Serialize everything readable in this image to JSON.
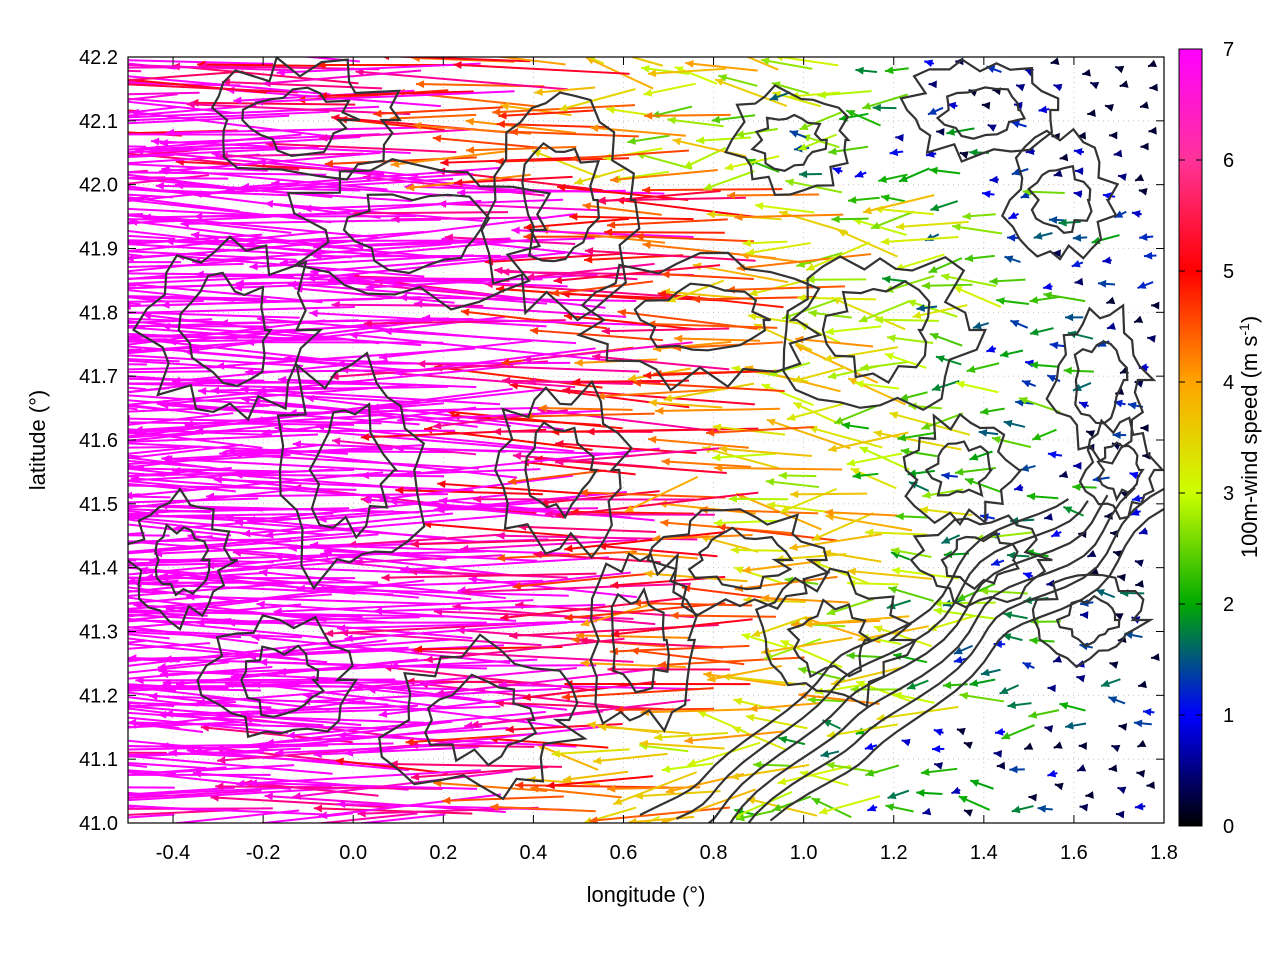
{
  "chart_data": {
    "type": "vector-field",
    "xlabel": "longitude (°)",
    "ylabel": "latitude (°)",
    "xlim": [
      -0.5,
      1.8
    ],
    "ylim": [
      41.0,
      42.2
    ],
    "x_ticks": [
      -0.4,
      -0.2,
      0.0,
      0.2,
      0.4,
      0.6,
      0.8,
      1.0,
      1.2,
      1.4,
      1.6,
      1.8
    ],
    "x_tick_labels": [
      "-0.4",
      "-0.2",
      "0.0",
      "0.2",
      "0.4",
      "0.6",
      "0.8",
      "1.0",
      "1.2",
      "1.4",
      "1.6",
      "1.8"
    ],
    "y_ticks": [
      41.0,
      41.1,
      41.2,
      41.3,
      41.4,
      41.5,
      41.6,
      41.7,
      41.8,
      41.9,
      42.0,
      42.1,
      42.2
    ],
    "y_tick_labels": [
      "41.0",
      "41.1",
      "41.2",
      "41.3",
      "41.4",
      "41.5",
      "41.6",
      "41.7",
      "41.8",
      "41.9",
      "42.0",
      "42.1",
      "42.2"
    ],
    "grid": true,
    "colorbar": {
      "label": "100m-wind speed (m s",
      "label_superscript": "-1",
      "label_suffix": ")",
      "range": [
        0,
        7
      ],
      "ticks": [
        0,
        1,
        2,
        3,
        4,
        5,
        6,
        7
      ],
      "tick_labels": [
        "0",
        "1",
        "2",
        "3",
        "4",
        "5",
        "6",
        "7"
      ],
      "colors": [
        "#000000",
        "#0000ff",
        "#00aa00",
        "#ccff00",
        "#ffa500",
        "#ff0000",
        "#ff00ff"
      ]
    },
    "series": [
      {
        "name": "wind vectors",
        "kind": "quiver",
        "speed_by_latitude": [
          {
            "lat": 41.0,
            "speed": 5.5
          },
          {
            "lat": 41.2,
            "speed": 6.8
          },
          {
            "lat": 41.4,
            "speed": 7.0
          },
          {
            "lat": 41.6,
            "speed": 7.0
          },
          {
            "lat": 41.8,
            "speed": 7.0
          },
          {
            "lat": 42.0,
            "speed": 5.5
          },
          {
            "lat": 42.2,
            "speed": 5.0
          }
        ],
        "speed_decay_east": true
      },
      {
        "name": "terrain contours",
        "kind": "contour",
        "color": "#333333"
      }
    ]
  }
}
